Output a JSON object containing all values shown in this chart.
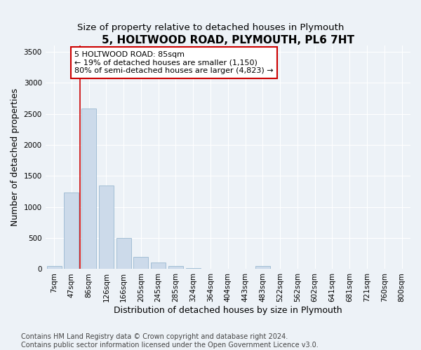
{
  "title": "5, HOLTWOOD ROAD, PLYMOUTH, PL6 7HT",
  "subtitle": "Size of property relative to detached houses in Plymouth",
  "xlabel": "Distribution of detached houses by size in Plymouth",
  "ylabel": "Number of detached properties",
  "bar_color": "#ccdaea",
  "bar_edge_color": "#9ab8d0",
  "categories": [
    "7sqm",
    "47sqm",
    "86sqm",
    "126sqm",
    "166sqm",
    "205sqm",
    "245sqm",
    "285sqm",
    "324sqm",
    "364sqm",
    "404sqm",
    "443sqm",
    "483sqm",
    "522sqm",
    "562sqm",
    "602sqm",
    "641sqm",
    "681sqm",
    "721sqm",
    "760sqm",
    "800sqm"
  ],
  "values": [
    50,
    1230,
    2590,
    1350,
    500,
    195,
    110,
    50,
    20,
    10,
    10,
    8,
    50,
    5,
    5,
    3,
    3,
    2,
    2,
    2,
    2
  ],
  "ylim": [
    0,
    3600
  ],
  "yticks": [
    0,
    500,
    1000,
    1500,
    2000,
    2500,
    3000,
    3500
  ],
  "annotation_text": "5 HOLTWOOD ROAD: 85sqm\n← 19% of detached houses are smaller (1,150)\n80% of semi-detached houses are larger (4,823) →",
  "vline_bar_index": 2,
  "vline_color": "#cc0000",
  "annotation_box_facecolor": "#ffffff",
  "annotation_box_edgecolor": "#cc0000",
  "footer_line1": "Contains HM Land Registry data © Crown copyright and database right 2024.",
  "footer_line2": "Contains public sector information licensed under the Open Government Licence v3.0.",
  "background_color": "#edf2f7",
  "grid_color": "#ffffff",
  "title_fontsize": 11,
  "subtitle_fontsize": 9.5,
  "axis_label_fontsize": 9,
  "tick_fontsize": 7.5,
  "annotation_fontsize": 8,
  "footer_fontsize": 7
}
